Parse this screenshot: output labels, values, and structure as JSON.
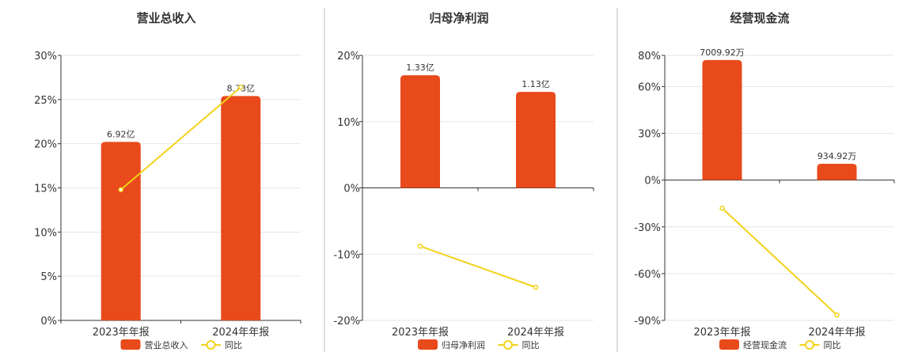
{
  "colors": {
    "bar": "#E84A1B",
    "line": "#F2D21B",
    "grid": "#E6E6E6",
    "axis": "#333333",
    "divider": "#BBBBBB"
  },
  "chart_data": [
    {
      "type": "bar",
      "title": "营业总收入",
      "categories": [
        "2023年年报",
        "2024年年报"
      ],
      "series": [
        {
          "name": "营业总收入",
          "type": "bar",
          "values": [
            20.2,
            25.4
          ],
          "labels": [
            "6.92亿",
            "8.73亿"
          ]
        },
        {
          "name": "同比",
          "type": "line",
          "values": [
            14.8,
            26.4
          ]
        }
      ],
      "ylim": [
        0,
        30
      ],
      "yticks": [
        0,
        5,
        10,
        15,
        20,
        25,
        30
      ],
      "ytick_labels": [
        "0%",
        "5%",
        "10%",
        "15%",
        "20%",
        "25%",
        "30%"
      ],
      "grid": true,
      "legend": "bottom"
    },
    {
      "type": "bar",
      "title": "归母净利润",
      "categories": [
        "2023年年报",
        "2024年年报"
      ],
      "series": [
        {
          "name": "归母净利润",
          "type": "bar",
          "values": [
            17,
            14.5
          ],
          "labels": [
            "1.33亿",
            "1.13亿"
          ]
        },
        {
          "name": "同比",
          "type": "line",
          "values": [
            -8.8,
            -15
          ]
        }
      ],
      "ylim": [
        -20,
        20
      ],
      "yticks": [
        -20,
        -10,
        0,
        10,
        20
      ],
      "ytick_labels": [
        "-20%",
        "-10%",
        "0%",
        "10%",
        "20%"
      ],
      "grid": true,
      "legend": "bottom"
    },
    {
      "type": "bar",
      "title": "经营现金流",
      "categories": [
        "2023年年报",
        "2024年年报"
      ],
      "series": [
        {
          "name": "经营现金流",
          "type": "bar",
          "values": [
            77,
            10.5
          ],
          "labels": [
            "7009.92万",
            "934.92万"
          ]
        },
        {
          "name": "同比",
          "type": "line",
          "values": [
            -18,
            -86.5
          ]
        }
      ],
      "ylim": [
        -90,
        80
      ],
      "yticks": [
        -90,
        -60,
        -30,
        0,
        30,
        60,
        80
      ],
      "ytick_labels": [
        "-90%",
        "-60%",
        "-30%",
        "0%",
        "30%",
        "60%",
        "80%"
      ],
      "grid": true,
      "legend": "bottom"
    }
  ]
}
